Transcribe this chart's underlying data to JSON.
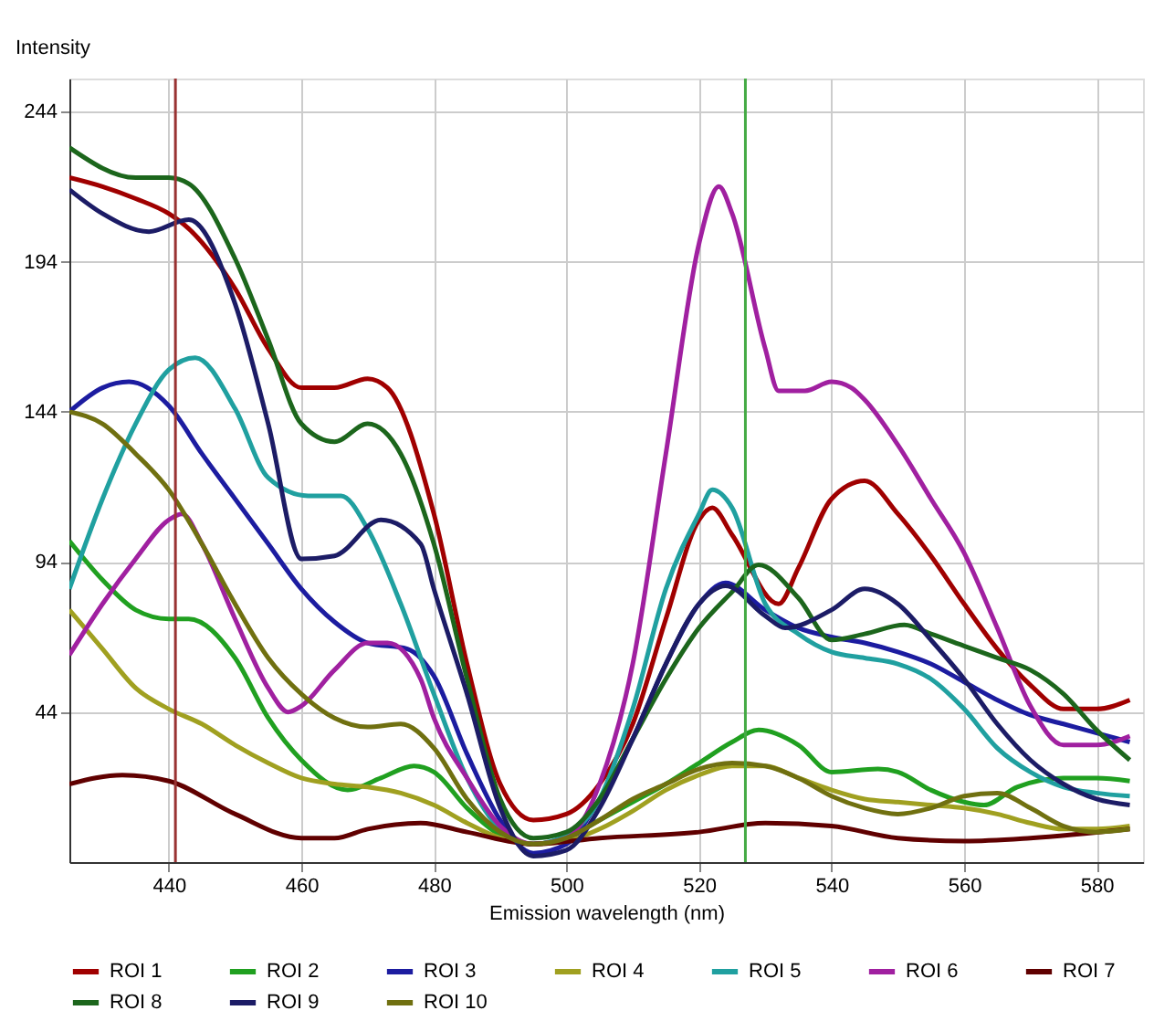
{
  "chart_data": {
    "type": "line",
    "xlabel": "Emission wavelength (nm)",
    "ylabel": "Intensity",
    "xlim": [
      425,
      587
    ],
    "ylim": [
      -6,
      255
    ],
    "xticks": [
      440,
      460,
      480,
      500,
      520,
      540,
      560,
      580
    ],
    "yticks": [
      44,
      94,
      144,
      194,
      244
    ],
    "grid": true,
    "legend": "bottom",
    "line_style": "solid",
    "marker": "none",
    "series": [
      {
        "name": "ROI 1",
        "color": "#a00000",
        "x": [
          425,
          430,
          435,
          440,
          443,
          450,
          455,
          460,
          465,
          470,
          473,
          480,
          485,
          490,
          495,
          500,
          505,
          510,
          515,
          520,
          522,
          525,
          532,
          535,
          540,
          545,
          550,
          555,
          560,
          565,
          570,
          575,
          580,
          585
        ],
        "values": [
          222,
          219,
          215,
          210,
          205,
          185,
          165,
          152,
          152,
          155,
          152,
          110,
          60,
          20,
          8,
          10,
          20,
          40,
          75,
          108,
          112,
          103,
          80,
          92,
          115,
          121,
          110,
          96,
          80,
          65,
          53,
          45,
          45,
          48
        ]
      },
      {
        "name": "ROI 2",
        "color": "#20a020",
        "x": [
          425,
          430,
          435,
          440,
          443,
          450,
          455,
          460,
          467,
          472,
          477,
          480,
          485,
          490,
          495,
          500,
          505,
          510,
          515,
          520,
          525,
          529,
          535,
          540,
          547,
          550,
          555,
          560,
          563,
          568,
          575,
          580,
          585
        ],
        "values": [
          101,
          88,
          78,
          75,
          75,
          62,
          42,
          28,
          18,
          22,
          26,
          24,
          12,
          3,
          0,
          2,
          8,
          14,
          20,
          27,
          34,
          38,
          33,
          24,
          25,
          24,
          18,
          14,
          13,
          19,
          22,
          22,
          21
        ]
      },
      {
        "name": "ROI 3",
        "color": "#1c1ca0",
        "x": [
          425,
          430,
          434,
          440,
          445,
          450,
          455,
          460,
          465,
          470,
          476,
          480,
          485,
          490,
          495,
          500,
          505,
          510,
          515,
          520,
          524,
          530,
          535,
          540,
          545,
          550,
          555,
          560,
          565,
          570,
          575,
          580,
          585
        ],
        "values": [
          144,
          152,
          154,
          146,
          130,
          115,
          100,
          85,
          74,
          67,
          65,
          56,
          30,
          8,
          -3,
          0,
          15,
          35,
          60,
          80,
          87,
          78,
          72,
          69,
          67,
          64,
          60,
          54,
          48,
          43,
          40,
          37,
          34
        ]
      },
      {
        "name": "ROI 4",
        "color": "#a0a020",
        "x": [
          425,
          430,
          435,
          440,
          445,
          450,
          455,
          460,
          465,
          470,
          475,
          480,
          485,
          490,
          495,
          500,
          505,
          510,
          515,
          520,
          525,
          530,
          535,
          540,
          545,
          550,
          555,
          560,
          565,
          570,
          575,
          580,
          585
        ],
        "values": [
          78,
          65,
          52,
          45,
          40,
          33,
          27,
          22,
          20,
          19,
          17,
          13,
          7,
          2,
          0,
          1,
          5,
          11,
          18,
          23,
          26,
          26,
          22,
          18,
          15,
          14,
          13,
          12,
          10,
          7,
          5,
          5,
          6
        ]
      },
      {
        "name": "ROI 5",
        "color": "#20a0a0",
        "x": [
          425,
          430,
          435,
          440,
          444,
          450,
          455,
          461,
          466,
          470,
          475,
          480,
          485,
          490,
          495,
          500,
          505,
          510,
          515,
          520,
          522,
          525,
          530,
          535,
          540,
          545,
          550,
          555,
          560,
          565,
          570,
          575,
          580,
          585
        ],
        "values": [
          85,
          115,
          140,
          158,
          162,
          145,
          122,
          116,
          116,
          105,
          80,
          50,
          22,
          5,
          0,
          3,
          15,
          45,
          85,
          110,
          118,
          112,
          80,
          70,
          64,
          62,
          60,
          55,
          45,
          32,
          24,
          19,
          17,
          16
        ]
      },
      {
        "name": "ROI 6",
        "color": "#a020a0",
        "x": [
          425,
          430,
          435,
          440,
          442,
          445,
          450,
          455,
          458,
          460,
          465,
          470,
          473,
          478,
          480,
          485,
          490,
          495,
          500,
          505,
          510,
          515,
          520,
          523,
          525,
          530,
          532,
          536,
          540,
          543,
          545,
          550,
          555,
          560,
          565,
          570,
          575,
          580,
          585
        ],
        "values": [
          63,
          80,
          95,
          108,
          110,
          100,
          75,
          52,
          44,
          46,
          58,
          67,
          67,
          55,
          42,
          22,
          6,
          0,
          2,
          20,
          60,
          130,
          200,
          219,
          210,
          165,
          151,
          151,
          154,
          152,
          148,
          133,
          115,
          97,
          72,
          46,
          33,
          33,
          36
        ]
      },
      {
        "name": "ROI 7",
        "color": "#600000",
        "x": [
          425,
          433,
          440,
          450,
          460,
          465,
          470,
          478,
          485,
          495,
          505,
          520,
          530,
          540,
          550,
          560,
          570,
          585
        ],
        "values": [
          20,
          23,
          21,
          10,
          2,
          2,
          5,
          7,
          4,
          0,
          2,
          4,
          7,
          6,
          2,
          1,
          2,
          5
        ]
      },
      {
        "name": "ROI 8",
        "color": "#1c661c",
        "x": [
          425,
          435,
          440,
          443,
          450,
          455,
          460,
          465,
          470,
          475,
          480,
          485,
          490,
          495,
          500,
          505,
          510,
          515,
          520,
          525,
          529,
          535,
          540,
          545,
          551,
          555,
          560,
          565,
          570,
          575,
          580,
          585
        ],
        "values": [
          232,
          222,
          222,
          220,
          195,
          168,
          140,
          134,
          140,
          130,
          100,
          55,
          15,
          2,
          4,
          15,
          35,
          55,
          72,
          84,
          93,
          82,
          68,
          70,
          73,
          70,
          66,
          62,
          58,
          50,
          38,
          28
        ]
      },
      {
        "name": "ROI 9",
        "color": "#1c1c66",
        "x": [
          425,
          430,
          437,
          443,
          450,
          455,
          460,
          465,
          472,
          478,
          480,
          485,
          490,
          495,
          500,
          505,
          510,
          515,
          520,
          524,
          530,
          533,
          540,
          545,
          550,
          555,
          560,
          565,
          570,
          575,
          580,
          585
        ],
        "values": [
          218,
          210,
          204,
          208,
          180,
          140,
          95,
          96,
          108,
          100,
          85,
          50,
          12,
          -4,
          -2,
          12,
          35,
          60,
          80,
          86,
          76,
          72,
          78,
          85,
          80,
          68,
          55,
          40,
          28,
          20,
          15,
          13
        ]
      },
      {
        "name": "ROI 10",
        "color": "#707010",
        "x": [
          425,
          430,
          435,
          440,
          445,
          450,
          455,
          460,
          465,
          470,
          475,
          480,
          485,
          490,
          495,
          500,
          505,
          510,
          515,
          520,
          525,
          530,
          535,
          540,
          545,
          550,
          555,
          560,
          565,
          570,
          575,
          580,
          585
        ],
        "values": [
          144,
          140,
          130,
          118,
          100,
          80,
          62,
          50,
          42,
          39,
          40,
          32,
          15,
          4,
          0,
          2,
          8,
          15,
          20,
          25,
          27,
          26,
          22,
          16,
          12,
          10,
          12,
          16,
          17,
          12,
          6,
          4,
          5
        ]
      }
    ],
    "ref_lines": [
      {
        "axis": "x",
        "value": 441,
        "color": "#993333"
      },
      {
        "axis": "x",
        "value": 527,
        "color": "#44aa44"
      }
    ]
  }
}
